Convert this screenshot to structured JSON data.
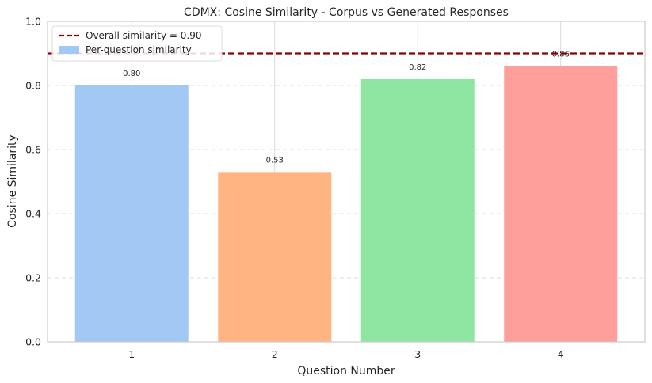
{
  "chart_data": {
    "type": "bar",
    "title": "CDMX: Cosine Similarity - Corpus vs Generated Responses",
    "xlabel": "Question Number",
    "ylabel": "Cosine Similarity",
    "categories": [
      "1",
      "2",
      "3",
      "4"
    ],
    "values": [
      0.8,
      0.53,
      0.82,
      0.86
    ],
    "value_labels": [
      "0.80",
      "0.53",
      "0.82",
      "0.86"
    ],
    "bar_colors": [
      "#a1c9f4",
      "#ffb482",
      "#8de5a1",
      "#ff9f9b"
    ],
    "ylim": [
      0,
      1.0
    ],
    "yticks": [
      0.0,
      0.2,
      0.4,
      0.6,
      0.8,
      1.0
    ],
    "ytick_labels": [
      "0.0",
      "0.2",
      "0.4",
      "0.6",
      "0.8",
      "1.0"
    ],
    "reference_line": {
      "value": 0.9,
      "label": "Overall similarity = 0.90",
      "color": "#8b0000",
      "style": "dashed"
    },
    "legend": {
      "placement": "top-left",
      "entries": [
        {
          "label": "Overall similarity = 0.90",
          "kind": "line",
          "color": "#8b0000"
        },
        {
          "label": "Per-question similarity",
          "kind": "patch",
          "color": "#a1c9f4"
        }
      ]
    },
    "grid": true
  }
}
